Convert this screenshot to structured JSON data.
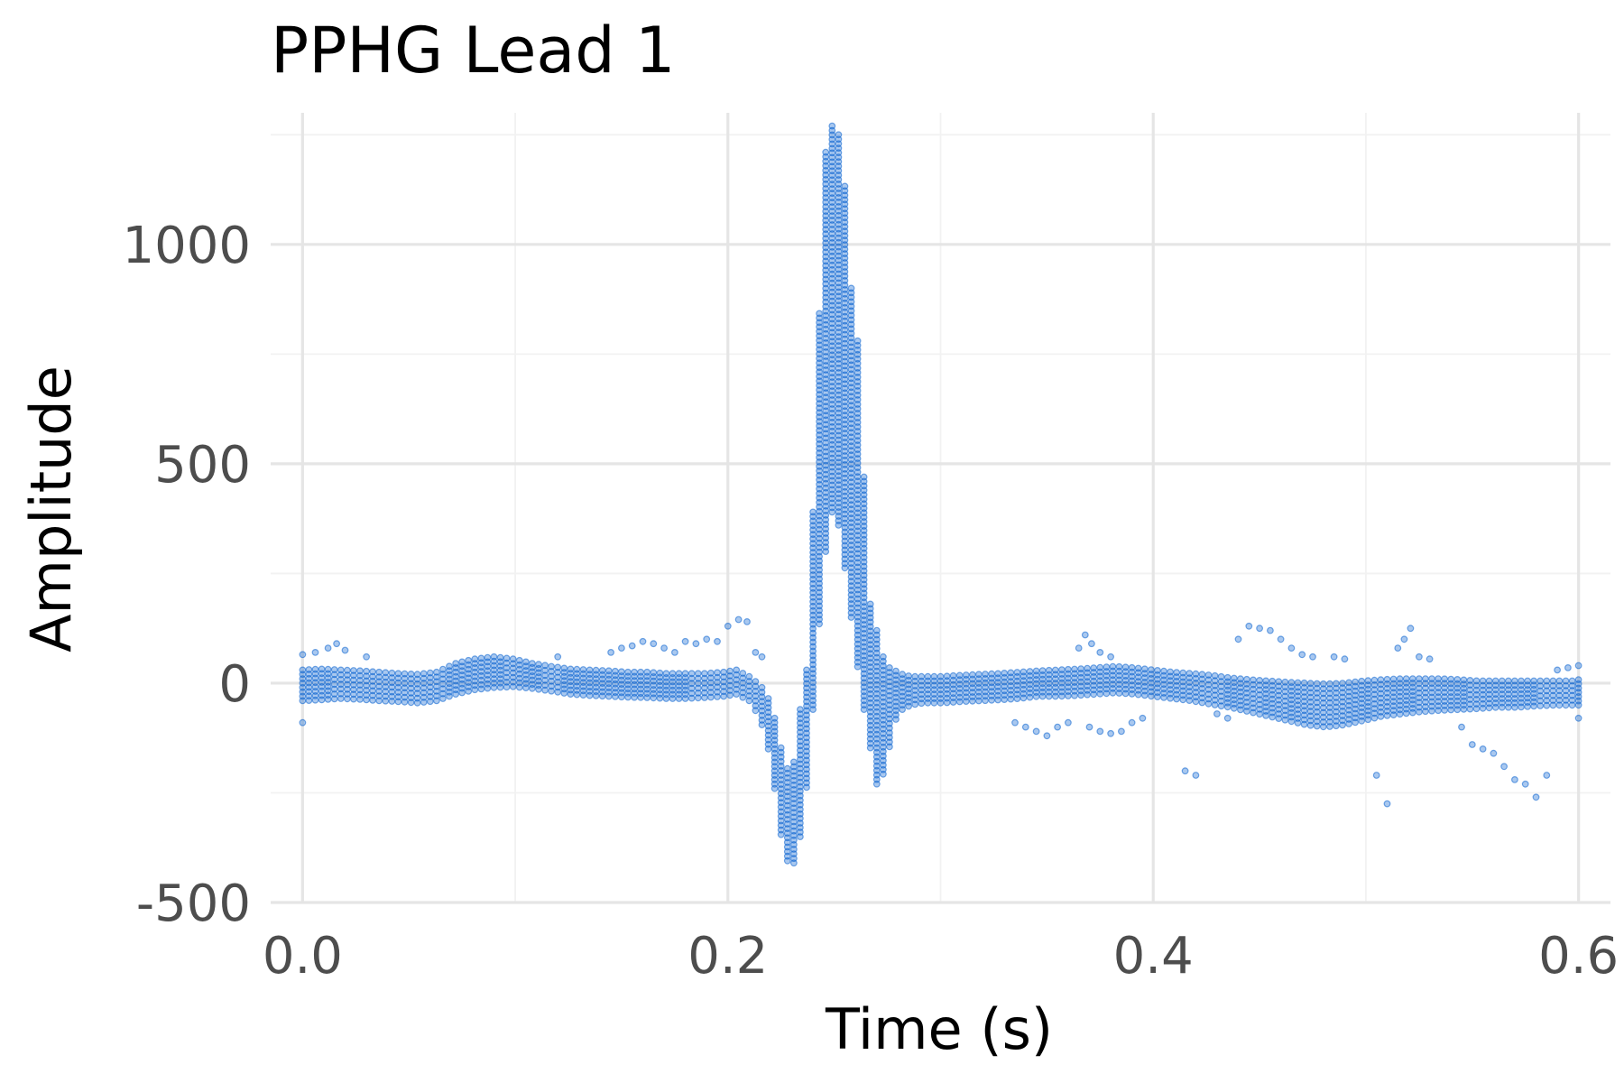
{
  "chart_data": {
    "type": "scatter",
    "title": "PPHG Lead 1",
    "xlabel": "Time (s)",
    "ylabel": "Amplitude",
    "xlim": [
      -0.015,
      0.615
    ],
    "ylim": [
      -500,
      1300
    ],
    "x_ticks": [
      0.0,
      0.2,
      0.4,
      0.6
    ],
    "x_tick_labels": [
      "0.0",
      "0.2",
      "0.4",
      "0.6"
    ],
    "y_ticks": [
      -500,
      0,
      500,
      1000
    ],
    "y_tick_labels": [
      "-500",
      "0",
      "500",
      "1000"
    ],
    "grid": true,
    "legend": "none",
    "point_color": "#0a62d0",
    "point_opacity": 0.35,
    "sample_interval_s": 0.003,
    "series": [
      {
        "values": [
          {
            "x": 0.0,
            "y_min": -40,
            "y_max": 30
          },
          {
            "x": 0.009,
            "y_min": -38,
            "y_max": 32
          },
          {
            "x": 0.018,
            "y_min": -35,
            "y_max": 30
          },
          {
            "x": 0.027,
            "y_min": -37,
            "y_max": 28
          },
          {
            "x": 0.036,
            "y_min": -40,
            "y_max": 25
          },
          {
            "x": 0.045,
            "y_min": -42,
            "y_max": 22
          },
          {
            "x": 0.054,
            "y_min": -45,
            "y_max": 20
          },
          {
            "x": 0.063,
            "y_min": -40,
            "y_max": 25
          },
          {
            "x": 0.072,
            "y_min": -25,
            "y_max": 45
          },
          {
            "x": 0.081,
            "y_min": -15,
            "y_max": 55
          },
          {
            "x": 0.09,
            "y_min": -10,
            "y_max": 60
          },
          {
            "x": 0.099,
            "y_min": -8,
            "y_max": 55
          },
          {
            "x": 0.108,
            "y_min": -12,
            "y_max": 45
          },
          {
            "x": 0.117,
            "y_min": -18,
            "y_max": 38
          },
          {
            "x": 0.126,
            "y_min": -25,
            "y_max": 32
          },
          {
            "x": 0.135,
            "y_min": -28,
            "y_max": 30
          },
          {
            "x": 0.144,
            "y_min": -30,
            "y_max": 28
          },
          {
            "x": 0.153,
            "y_min": -32,
            "y_max": 25
          },
          {
            "x": 0.162,
            "y_min": -33,
            "y_max": 25
          },
          {
            "x": 0.171,
            "y_min": -35,
            "y_max": 22
          },
          {
            "x": 0.18,
            "y_min": -35,
            "y_max": 22
          },
          {
            "x": 0.189,
            "y_min": -33,
            "y_max": 22
          },
          {
            "x": 0.198,
            "y_min": -30,
            "y_max": 25
          },
          {
            "x": 0.204,
            "y_min": -25,
            "y_max": 30
          },
          {
            "x": 0.21,
            "y_min": -40,
            "y_max": 15
          },
          {
            "x": 0.214,
            "y_min": -70,
            "y_max": 0
          },
          {
            "x": 0.218,
            "y_min": -120,
            "y_max": -20
          },
          {
            "x": 0.222,
            "y_min": -240,
            "y_max": -80
          },
          {
            "x": 0.226,
            "y_min": -380,
            "y_max": -170
          },
          {
            "x": 0.23,
            "y_min": -430,
            "y_max": -220
          },
          {
            "x": 0.234,
            "y_min": -350,
            "y_max": -60
          },
          {
            "x": 0.238,
            "y_min": -200,
            "y_max": 60
          },
          {
            "x": 0.242,
            "y_min": 80,
            "y_max": 720
          },
          {
            "x": 0.246,
            "y_min": 300,
            "y_max": 1210
          },
          {
            "x": 0.25,
            "y_min": 420,
            "y_max": 1290
          },
          {
            "x": 0.254,
            "y_min": 300,
            "y_max": 1210
          },
          {
            "x": 0.258,
            "y_min": 150,
            "y_max": 900
          },
          {
            "x": 0.262,
            "y_min": 0,
            "y_max": 740
          },
          {
            "x": 0.266,
            "y_min": -120,
            "y_max": 200
          },
          {
            "x": 0.27,
            "y_min": -230,
            "y_max": 120
          },
          {
            "x": 0.274,
            "y_min": -200,
            "y_max": 40
          },
          {
            "x": 0.278,
            "y_min": -90,
            "y_max": 30
          },
          {
            "x": 0.282,
            "y_min": -60,
            "y_max": 20
          },
          {
            "x": 0.286,
            "y_min": -50,
            "y_max": 15
          },
          {
            "x": 0.292,
            "y_min": -45,
            "y_max": 15
          },
          {
            "x": 0.301,
            "y_min": -45,
            "y_max": 15
          },
          {
            "x": 0.31,
            "y_min": -42,
            "y_max": 18
          },
          {
            "x": 0.319,
            "y_min": -40,
            "y_max": 20
          },
          {
            "x": 0.328,
            "y_min": -38,
            "y_max": 22
          },
          {
            "x": 0.337,
            "y_min": -35,
            "y_max": 25
          },
          {
            "x": 0.346,
            "y_min": -30,
            "y_max": 28
          },
          {
            "x": 0.355,
            "y_min": -30,
            "y_max": 30
          },
          {
            "x": 0.364,
            "y_min": -28,
            "y_max": 32
          },
          {
            "x": 0.373,
            "y_min": -25,
            "y_max": 35
          },
          {
            "x": 0.382,
            "y_min": -22,
            "y_max": 38
          },
          {
            "x": 0.391,
            "y_min": -25,
            "y_max": 35
          },
          {
            "x": 0.4,
            "y_min": -30,
            "y_max": 30
          },
          {
            "x": 0.409,
            "y_min": -35,
            "y_max": 25
          },
          {
            "x": 0.418,
            "y_min": -40,
            "y_max": 22
          },
          {
            "x": 0.427,
            "y_min": -48,
            "y_max": 18
          },
          {
            "x": 0.436,
            "y_min": -55,
            "y_max": 12
          },
          {
            "x": 0.445,
            "y_min": -65,
            "y_max": 8
          },
          {
            "x": 0.454,
            "y_min": -75,
            "y_max": 5
          },
          {
            "x": 0.463,
            "y_min": -85,
            "y_max": 2
          },
          {
            "x": 0.472,
            "y_min": -95,
            "y_max": 0
          },
          {
            "x": 0.481,
            "y_min": -100,
            "y_max": -2
          },
          {
            "x": 0.49,
            "y_min": -95,
            "y_max": 0
          },
          {
            "x": 0.499,
            "y_min": -85,
            "y_max": 5
          },
          {
            "x": 0.508,
            "y_min": -75,
            "y_max": 8
          },
          {
            "x": 0.517,
            "y_min": -70,
            "y_max": 10
          },
          {
            "x": 0.526,
            "y_min": -65,
            "y_max": 10
          },
          {
            "x": 0.535,
            "y_min": -62,
            "y_max": 10
          },
          {
            "x": 0.544,
            "y_min": -60,
            "y_max": 8
          },
          {
            "x": 0.553,
            "y_min": -58,
            "y_max": 5
          },
          {
            "x": 0.562,
            "y_min": -55,
            "y_max": 5
          },
          {
            "x": 0.571,
            "y_min": -55,
            "y_max": 5
          },
          {
            "x": 0.58,
            "y_min": -52,
            "y_max": 5
          },
          {
            "x": 0.589,
            "y_min": -50,
            "y_max": 5
          },
          {
            "x": 0.598,
            "y_min": -50,
            "y_max": 5
          },
          {
            "x": 0.6,
            "y_min": -50,
            "y_max": 8
          }
        ]
      }
    ],
    "outliers": [
      {
        "x": 0.0,
        "y": -90
      },
      {
        "x": 0.0,
        "y": 65
      },
      {
        "x": 0.006,
        "y": 70
      },
      {
        "x": 0.012,
        "y": 80
      },
      {
        "x": 0.016,
        "y": 90
      },
      {
        "x": 0.02,
        "y": 75
      },
      {
        "x": 0.03,
        "y": 60
      },
      {
        "x": 0.12,
        "y": 60
      },
      {
        "x": 0.145,
        "y": 70
      },
      {
        "x": 0.15,
        "y": 80
      },
      {
        "x": 0.155,
        "y": 85
      },
      {
        "x": 0.16,
        "y": 95
      },
      {
        "x": 0.165,
        "y": 90
      },
      {
        "x": 0.17,
        "y": 80
      },
      {
        "x": 0.175,
        "y": 70
      },
      {
        "x": 0.18,
        "y": 95
      },
      {
        "x": 0.185,
        "y": 90
      },
      {
        "x": 0.19,
        "y": 100
      },
      {
        "x": 0.195,
        "y": 95
      },
      {
        "x": 0.2,
        "y": 130
      },
      {
        "x": 0.205,
        "y": 145
      },
      {
        "x": 0.209,
        "y": 140
      },
      {
        "x": 0.213,
        "y": 70
      },
      {
        "x": 0.216,
        "y": 60
      },
      {
        "x": 0.365,
        "y": 80
      },
      {
        "x": 0.368,
        "y": 110
      },
      {
        "x": 0.371,
        "y": 90
      },
      {
        "x": 0.375,
        "y": 70
      },
      {
        "x": 0.38,
        "y": 60
      },
      {
        "x": 0.335,
        "y": -90
      },
      {
        "x": 0.34,
        "y": -100
      },
      {
        "x": 0.345,
        "y": -110
      },
      {
        "x": 0.35,
        "y": -120
      },
      {
        "x": 0.355,
        "y": -100
      },
      {
        "x": 0.36,
        "y": -90
      },
      {
        "x": 0.37,
        "y": -100
      },
      {
        "x": 0.375,
        "y": -110
      },
      {
        "x": 0.38,
        "y": -115
      },
      {
        "x": 0.385,
        "y": -110
      },
      {
        "x": 0.39,
        "y": -90
      },
      {
        "x": 0.395,
        "y": -80
      },
      {
        "x": 0.415,
        "y": -200
      },
      {
        "x": 0.42,
        "y": -210
      },
      {
        "x": 0.43,
        "y": -70
      },
      {
        "x": 0.435,
        "y": -80
      },
      {
        "x": 0.44,
        "y": 100
      },
      {
        "x": 0.445,
        "y": 130
      },
      {
        "x": 0.45,
        "y": 125
      },
      {
        "x": 0.455,
        "y": 120
      },
      {
        "x": 0.46,
        "y": 100
      },
      {
        "x": 0.465,
        "y": 80
      },
      {
        "x": 0.47,
        "y": 65
      },
      {
        "x": 0.475,
        "y": 60
      },
      {
        "x": 0.485,
        "y": 60
      },
      {
        "x": 0.49,
        "y": 55
      },
      {
        "x": 0.505,
        "y": -210
      },
      {
        "x": 0.51,
        "y": -275
      },
      {
        "x": 0.515,
        "y": 80
      },
      {
        "x": 0.518,
        "y": 100
      },
      {
        "x": 0.521,
        "y": 125
      },
      {
        "x": 0.525,
        "y": 60
      },
      {
        "x": 0.53,
        "y": 55
      },
      {
        "x": 0.545,
        "y": -100
      },
      {
        "x": 0.55,
        "y": -140
      },
      {
        "x": 0.555,
        "y": -150
      },
      {
        "x": 0.56,
        "y": -160
      },
      {
        "x": 0.565,
        "y": -190
      },
      {
        "x": 0.57,
        "y": -220
      },
      {
        "x": 0.575,
        "y": -230
      },
      {
        "x": 0.58,
        "y": -260
      },
      {
        "x": 0.585,
        "y": -210
      },
      {
        "x": 0.59,
        "y": 30
      },
      {
        "x": 0.595,
        "y": 35
      },
      {
        "x": 0.6,
        "y": 40
      },
      {
        "x": 0.6,
        "y": -80
      }
    ]
  }
}
